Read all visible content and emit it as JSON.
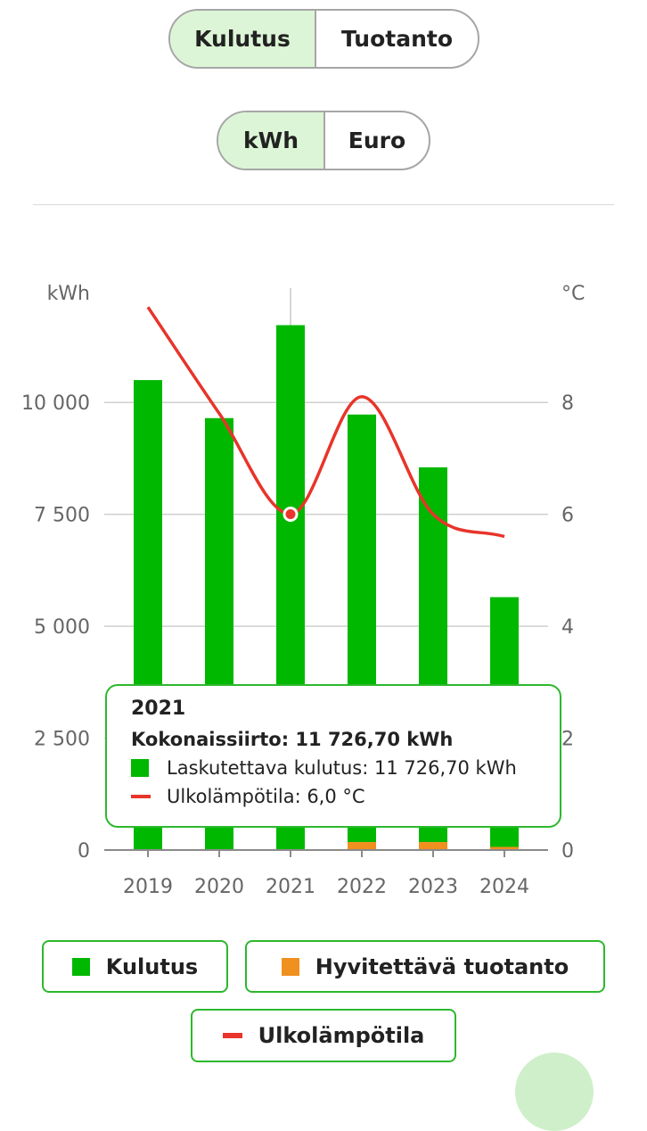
{
  "toggles": {
    "mode": {
      "options": [
        "Kulutus",
        "Tuotanto"
      ],
      "selected": "Kulutus"
    },
    "unit": {
      "options": [
        "kWh",
        "Euro"
      ],
      "selected": "kWh"
    }
  },
  "colors": {
    "consumption": "#00b800",
    "production": "#f0901e",
    "temperature": "#e8342a",
    "accent_border": "#2db82d",
    "grid": "#cfcfcf"
  },
  "chart_data": {
    "type": "bar",
    "categories": [
      "2019",
      "2020",
      "2021",
      "2022",
      "2023",
      "2024"
    ],
    "series": [
      {
        "name": "Kulutus",
        "axis": "left",
        "values": [
          10500,
          9650,
          11727,
          9730,
          8550,
          5650
        ]
      },
      {
        "name": "Hyvitettävä tuotanto",
        "axis": "left",
        "values": [
          0,
          0,
          0,
          180,
          180,
          70
        ]
      },
      {
        "name": "Ulkolämpötila",
        "axis": "right",
        "type": "line",
        "values": [
          9.7,
          7.8,
          6.0,
          8.1,
          6.0,
          5.6
        ]
      }
    ],
    "y_left": {
      "label": "kWh",
      "ticks": [
        "0",
        "2 500",
        "5 000",
        "7 500",
        "10 000"
      ],
      "tick_values": [
        0,
        2500,
        5000,
        7500,
        10000
      ],
      "range": [
        0,
        12500
      ]
    },
    "y_right": {
      "label": "°C",
      "ticks": [
        "0",
        "2",
        "4",
        "6",
        "8"
      ],
      "tick_values": [
        0,
        2,
        4,
        6,
        8
      ],
      "range": [
        0,
        10
      ]
    },
    "highlighted_category": "2021"
  },
  "tooltip": {
    "title": "2021",
    "total": "Kokonaissiirto: 11 726,70 kWh",
    "rows": [
      {
        "label": "Laskutettava kulutus: 11 726,70 kWh"
      },
      {
        "label": "Ulkolämpötila: 6,0 °C"
      }
    ]
  },
  "legend": {
    "items": [
      {
        "label": "Kulutus"
      },
      {
        "label": "Hyvitettävä tuotanto"
      },
      {
        "label": "Ulkolämpötila"
      }
    ]
  }
}
